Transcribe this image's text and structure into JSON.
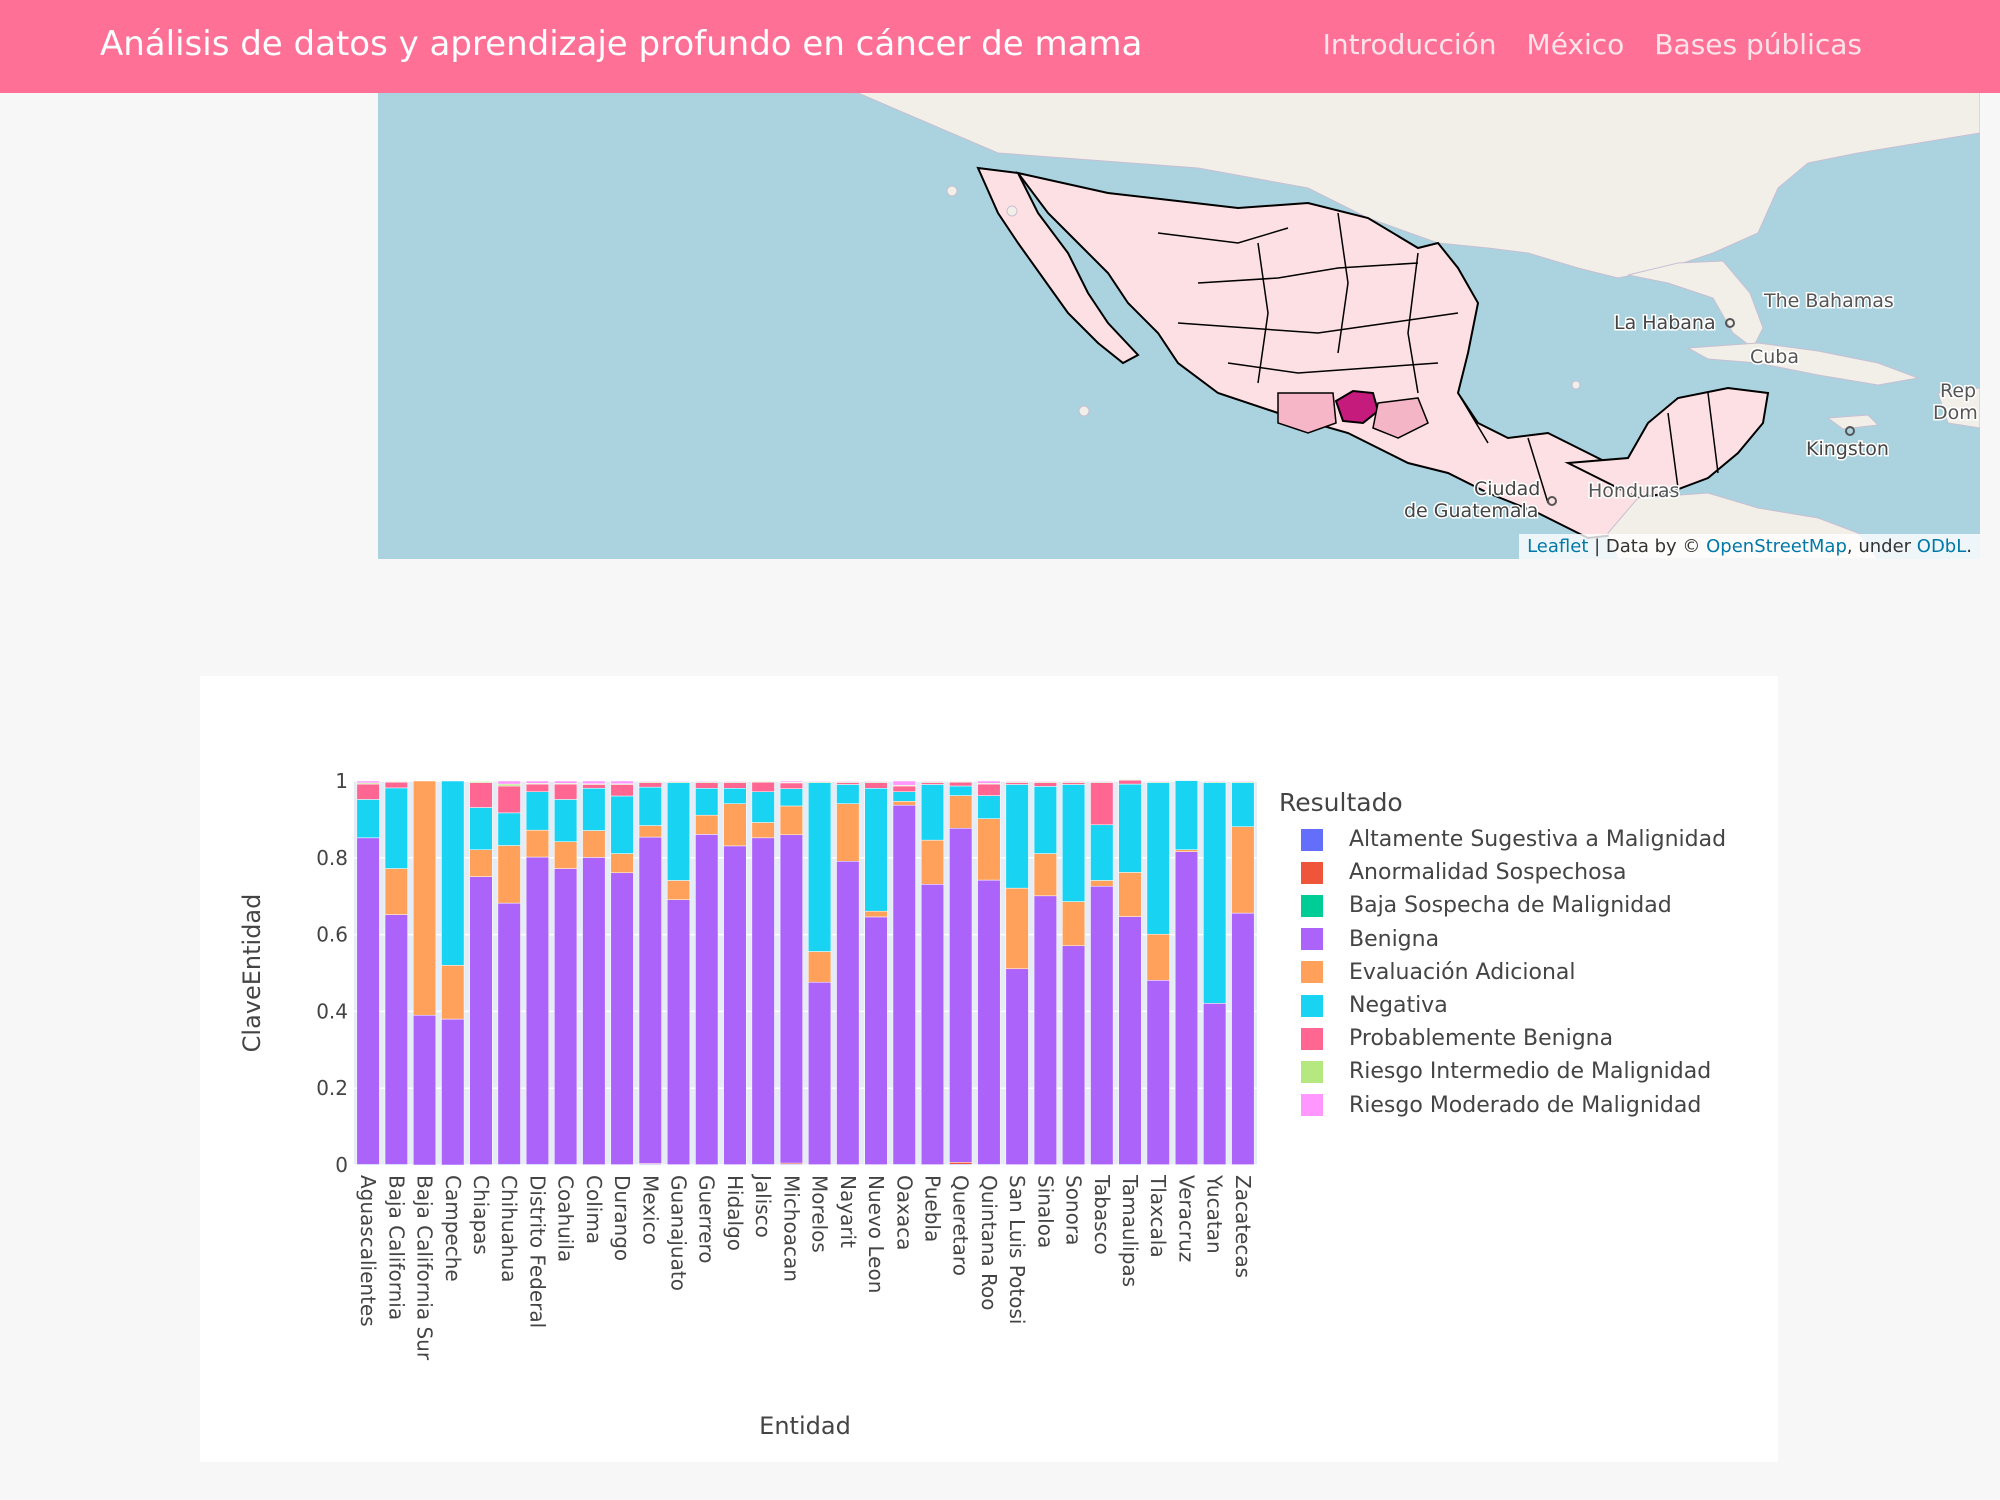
{
  "navbar": {
    "brand": "Análisis de datos y aprendizaje profundo en cáncer de mama",
    "links": [
      "Introducción",
      "México",
      "Bases públicas"
    ]
  },
  "map": {
    "labels": [
      {
        "text": "La Habana",
        "name": "map-label-la-habana"
      },
      {
        "text": "The Bahamas",
        "name": "map-label-bahamas"
      },
      {
        "text": "Cuba",
        "name": "map-label-cuba"
      },
      {
        "text": "Rep",
        "name": "map-label-rep"
      },
      {
        "text": "Dom",
        "name": "map-label-dom"
      },
      {
        "text": "Kingston",
        "name": "map-label-kingston"
      },
      {
        "text": "Honduras",
        "name": "map-label-honduras"
      },
      {
        "text": "Ciudad",
        "name": "map-label-ciudad"
      },
      {
        "text": "de Guatemala",
        "name": "map-label-guatemala"
      }
    ],
    "attribution": {
      "leaflet": "Leaflet",
      "data_by": " | Data by © ",
      "osm": "OpenStreetMap",
      "under": ", under ",
      "odbl": "ODbL",
      "end": "."
    },
    "colors": {
      "water": "#aad3df",
      "land": "#f2efe9",
      "state": "#fde0e4",
      "highlight": "#c51b7d"
    }
  },
  "chart_data": {
    "type": "bar",
    "stacked": true,
    "xlabel": "Entidad",
    "ylabel": "ClaveEntidad",
    "ylim": [
      0,
      1
    ],
    "yticks": [
      0,
      0.2,
      0.4,
      0.6,
      0.8,
      1
    ],
    "ytick_labels": [
      "0",
      "0.2",
      "0.4",
      "0.6",
      "0.8",
      "1"
    ],
    "legend_title": "Resultado",
    "legend_position": "right",
    "categories": [
      "Aguascalientes",
      "Baja California",
      "Baja California Sur",
      "Campeche",
      "Chiapas",
      "Chihuahua",
      "Distrito Federal",
      "Coahuila",
      "Colima",
      "Durango",
      "Mexico",
      "Guanajuato",
      "Guerrero",
      "Hidalgo",
      "Jalisco",
      "Michoacan",
      "Morelos",
      "Nayarit",
      "Nuevo Leon",
      "Oaxaca",
      "Puebla",
      "Queretaro",
      "Quintana Roo",
      "San Luis Potosi",
      "Sinaloa",
      "Sonora",
      "Tabasco",
      "Tamaulipas",
      "Tlaxcala",
      "Veracruz",
      "Yucatan",
      "Zacatecas"
    ],
    "series": [
      {
        "name": "Altamente Sugestiva a Malignidad",
        "color": "#636efa",
        "values": [
          0.002,
          0.002,
          0.0,
          0.0,
          0.001,
          0.002,
          0.002,
          0.002,
          0.001,
          0.001,
          0.002,
          0.001,
          0.001,
          0.001,
          0.002,
          0.002,
          0.001,
          0.001,
          0.001,
          0.002,
          0.001,
          0.002,
          0.002,
          0.001,
          0.001,
          0.001,
          0.001,
          0.002,
          0.001,
          0.001,
          0.001,
          0.001
        ]
      },
      {
        "name": "Anormalidad Sospechosa",
        "color": "#ef553b",
        "values": [
          0.0,
          0.0,
          0.0,
          0.0,
          0.0,
          0.0,
          0.0,
          0.0,
          0.0,
          0.0,
          0.002,
          0.0,
          0.0,
          0.0,
          0.0,
          0.003,
          0.0,
          0.0,
          0.0,
          0.0,
          0.0,
          0.005,
          0.0,
          0.0,
          0.0,
          0.0,
          0.0,
          0.0,
          0.0,
          0.0,
          0.0,
          0.0
        ]
      },
      {
        "name": "Baja Sospecha de Malignidad",
        "color": "#00cc96",
        "values": [
          0.0,
          0.0,
          0.0,
          0.0,
          0.0,
          0.0,
          0.0,
          0.0,
          0.0,
          0.0,
          0.0,
          0.0,
          0.0,
          0.0,
          0.0,
          0.0,
          0.0,
          0.0,
          0.0,
          0.0,
          0.0,
          0.0,
          0.0,
          0.0,
          0.0,
          0.0,
          0.0,
          0.0,
          0.0,
          0.0,
          0.0,
          0.0
        ]
      },
      {
        "name": "Benigna",
        "color": "#ab63fa",
        "values": [
          0.85,
          0.65,
          0.39,
          0.38,
          0.75,
          0.68,
          0.8,
          0.77,
          0.8,
          0.76,
          0.85,
          0.69,
          0.86,
          0.83,
          0.85,
          0.855,
          0.475,
          0.79,
          0.645,
          0.935,
          0.73,
          0.87,
          0.74,
          0.51,
          0.7,
          0.57,
          0.725,
          0.645,
          0.48,
          0.815,
          0.42,
          0.655
        ]
      },
      {
        "name": "Evaluación Adicional",
        "color": "#ffa15a",
        "values": [
          0.0,
          0.12,
          0.61,
          0.14,
          0.07,
          0.15,
          0.07,
          0.07,
          0.07,
          0.05,
          0.03,
          0.05,
          0.05,
          0.11,
          0.04,
          0.075,
          0.08,
          0.15,
          0.015,
          0.01,
          0.115,
          0.085,
          0.16,
          0.21,
          0.11,
          0.115,
          0.015,
          0.115,
          0.12,
          0.005,
          0.0,
          0.225
        ]
      },
      {
        "name": "Negativa",
        "color": "#19d3f3",
        "values": [
          0.1,
          0.21,
          0.0,
          0.48,
          0.11,
          0.085,
          0.1,
          0.11,
          0.11,
          0.15,
          0.1,
          0.255,
          0.07,
          0.04,
          0.08,
          0.045,
          0.44,
          0.05,
          0.32,
          0.025,
          0.145,
          0.025,
          0.06,
          0.27,
          0.175,
          0.305,
          0.145,
          0.23,
          0.395,
          0.18,
          0.575,
          0.115
        ]
      },
      {
        "name": "Probablemente Benigna",
        "color": "#ff6692",
        "values": [
          0.04,
          0.015,
          0.0,
          0.0,
          0.065,
          0.07,
          0.02,
          0.04,
          0.01,
          0.03,
          0.012,
          0.0,
          0.015,
          0.015,
          0.025,
          0.015,
          0.0,
          0.005,
          0.015,
          0.015,
          0.005,
          0.01,
          0.03,
          0.005,
          0.01,
          0.005,
          0.11,
          0.01,
          0.0,
          0.0,
          0.0,
          0.0
        ]
      },
      {
        "name": "Riesgo Intermedio de Malignidad",
        "color": "#b6e880",
        "values": [
          0.003,
          0.002,
          0.0,
          0.0,
          0.003,
          0.005,
          0.002,
          0.002,
          0.002,
          0.002,
          0.002,
          0.002,
          0.002,
          0.002,
          0.002,
          0.002,
          0.002,
          0.002,
          0.002,
          0.002,
          0.002,
          0.002,
          0.002,
          0.002,
          0.002,
          0.002,
          0.002,
          0.002,
          0.002,
          0.0,
          0.002,
          0.002
        ]
      },
      {
        "name": "Riesgo Moderado de Malignidad",
        "color": "#ff97ff",
        "values": [
          0.005,
          0.001,
          0.0,
          0.0,
          0.001,
          0.008,
          0.006,
          0.006,
          0.007,
          0.007,
          0.002,
          0.002,
          0.002,
          0.002,
          0.001,
          0.003,
          0.002,
          0.002,
          0.002,
          0.011,
          0.002,
          0.001,
          0.006,
          0.002,
          0.002,
          0.002,
          0.002,
          0.001,
          0.002,
          0.0,
          0.002,
          0.002
        ]
      }
    ]
  }
}
